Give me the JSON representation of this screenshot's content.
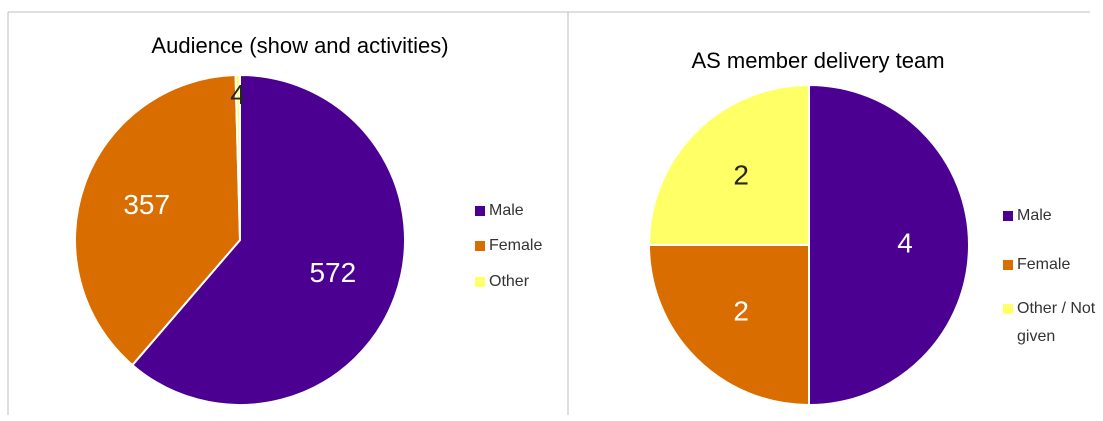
{
  "chart_data": [
    {
      "type": "pie",
      "title": "Audience (show and activities)",
      "categories": [
        "Male",
        "Female",
        "Other"
      ],
      "values": [
        572,
        357,
        4
      ],
      "colors": [
        "#4b0091",
        "#d96d00",
        "#ffff66"
      ]
    },
    {
      "type": "pie",
      "title": "AS member delivery team",
      "categories": [
        "Male",
        "Female",
        "Other / Not given"
      ],
      "values": [
        4,
        2,
        2
      ],
      "colors": [
        "#4b0091",
        "#d96d00",
        "#ffff66"
      ]
    }
  ]
}
